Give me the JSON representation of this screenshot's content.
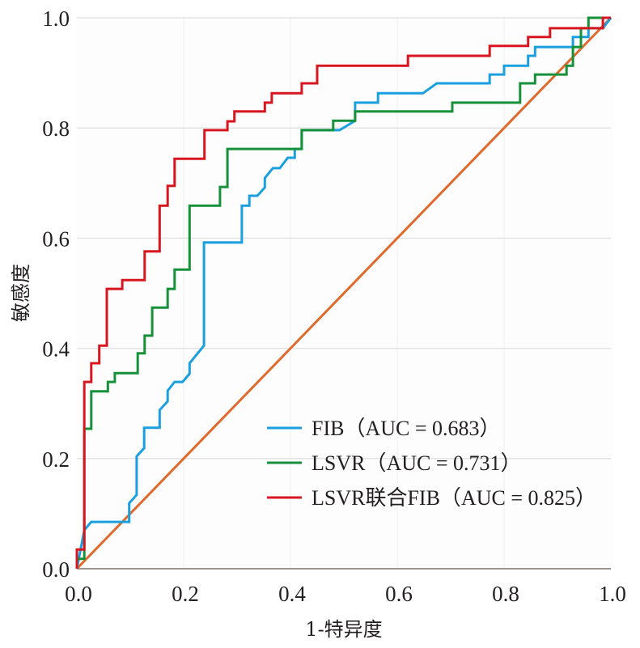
{
  "chart_data": {
    "type": "line",
    "title": "",
    "xlabel": "1-特异度",
    "ylabel": "敏感度",
    "xlim": [
      0,
      1
    ],
    "ylim": [
      0,
      1
    ],
    "x_ticks": [
      "0.0",
      "0.2",
      "0.4",
      "0.6",
      "0.8",
      "1.0"
    ],
    "y_ticks": [
      "0.0",
      "0.2",
      "0.4",
      "0.6",
      "0.8",
      "1.0"
    ],
    "x_tick_values": [
      0,
      0.2,
      0.4,
      0.6,
      0.8,
      1.0
    ],
    "y_tick_values": [
      0,
      0.2,
      0.4,
      0.6,
      0.8,
      1.0
    ],
    "grid": true,
    "legend_position": "bottom-right",
    "series": [
      {
        "name": "FIB",
        "legend_label": "FIB（AUC = 0.683）",
        "auc": 0.683,
        "color": "#1a9fe0",
        "points": [
          [
            0,
            0
          ],
          [
            0.014,
            0.07
          ],
          [
            0.027,
            0.085
          ],
          [
            0.098,
            0.085
          ],
          [
            0.098,
            0.119
          ],
          [
            0.112,
            0.134
          ],
          [
            0.112,
            0.204
          ],
          [
            0.126,
            0.219
          ],
          [
            0.126,
            0.256
          ],
          [
            0.155,
            0.256
          ],
          [
            0.155,
            0.288
          ],
          [
            0.17,
            0.304
          ],
          [
            0.17,
            0.323
          ],
          [
            0.183,
            0.339
          ],
          [
            0.198,
            0.339
          ],
          [
            0.211,
            0.354
          ],
          [
            0.211,
            0.373
          ],
          [
            0.238,
            0.405
          ],
          [
            0.238,
            0.592
          ],
          [
            0.309,
            0.592
          ],
          [
            0.309,
            0.659
          ],
          [
            0.323,
            0.659
          ],
          [
            0.323,
            0.677
          ],
          [
            0.338,
            0.677
          ],
          [
            0.352,
            0.692
          ],
          [
            0.352,
            0.709
          ],
          [
            0.367,
            0.727
          ],
          [
            0.38,
            0.727
          ],
          [
            0.395,
            0.746
          ],
          [
            0.408,
            0.746
          ],
          [
            0.408,
            0.762
          ],
          [
            0.421,
            0.762
          ],
          [
            0.421,
            0.796
          ],
          [
            0.492,
            0.796
          ],
          [
            0.521,
            0.813
          ],
          [
            0.521,
            0.846
          ],
          [
            0.564,
            0.846
          ],
          [
            0.564,
            0.863
          ],
          [
            0.648,
            0.863
          ],
          [
            0.674,
            0.881
          ],
          [
            0.773,
            0.881
          ],
          [
            0.773,
            0.897
          ],
          [
            0.8,
            0.897
          ],
          [
            0.8,
            0.913
          ],
          [
            0.845,
            0.913
          ],
          [
            0.845,
            0.931
          ],
          [
            0.858,
            0.931
          ],
          [
            0.858,
            0.947
          ],
          [
            0.929,
            0.947
          ],
          [
            0.929,
            0.965
          ],
          [
            0.958,
            0.965
          ],
          [
            0.958,
            0.981
          ],
          [
            0.985,
            0.981
          ],
          [
            1,
            1
          ]
        ]
      },
      {
        "name": "LSVR",
        "legend_label": "LSVR（AUC = 0.731）",
        "auc": 0.731,
        "color": "#16913a",
        "points": [
          [
            0,
            0
          ],
          [
            0,
            0.018
          ],
          [
            0.014,
            0.018
          ],
          [
            0.014,
            0.254
          ],
          [
            0.027,
            0.254
          ],
          [
            0.027,
            0.322
          ],
          [
            0.058,
            0.322
          ],
          [
            0.058,
            0.339
          ],
          [
            0.071,
            0.339
          ],
          [
            0.071,
            0.355
          ],
          [
            0.114,
            0.355
          ],
          [
            0.114,
            0.391
          ],
          [
            0.127,
            0.391
          ],
          [
            0.127,
            0.423
          ],
          [
            0.141,
            0.423
          ],
          [
            0.141,
            0.474
          ],
          [
            0.17,
            0.474
          ],
          [
            0.17,
            0.508
          ],
          [
            0.183,
            0.508
          ],
          [
            0.183,
            0.543
          ],
          [
            0.211,
            0.543
          ],
          [
            0.211,
            0.659
          ],
          [
            0.268,
            0.659
          ],
          [
            0.268,
            0.693
          ],
          [
            0.282,
            0.693
          ],
          [
            0.282,
            0.762
          ],
          [
            0.421,
            0.762
          ],
          [
            0.421,
            0.796
          ],
          [
            0.48,
            0.796
          ],
          [
            0.48,
            0.813
          ],
          [
            0.521,
            0.813
          ],
          [
            0.521,
            0.83
          ],
          [
            0.703,
            0.83
          ],
          [
            0.703,
            0.846
          ],
          [
            0.83,
            0.846
          ],
          [
            0.83,
            0.881
          ],
          [
            0.858,
            0.881
          ],
          [
            0.858,
            0.897
          ],
          [
            0.917,
            0.897
          ],
          [
            0.917,
            0.913
          ],
          [
            0.929,
            0.913
          ],
          [
            0.929,
            0.947
          ],
          [
            0.944,
            0.947
          ],
          [
            0.944,
            0.981
          ],
          [
            0.958,
            0.981
          ],
          [
            0.958,
            1.0
          ],
          [
            1,
            1
          ]
        ]
      },
      {
        "name": "LSVR联合FIB",
        "legend_label": "LSVR联合FIB（AUC = 0.825）",
        "auc": 0.825,
        "color": "#d7161f",
        "points": [
          [
            0,
            0
          ],
          [
            0,
            0.035
          ],
          [
            0.014,
            0.035
          ],
          [
            0.014,
            0.339
          ],
          [
            0.027,
            0.339
          ],
          [
            0.027,
            0.373
          ],
          [
            0.042,
            0.373
          ],
          [
            0.042,
            0.405
          ],
          [
            0.056,
            0.405
          ],
          [
            0.056,
            0.508
          ],
          [
            0.085,
            0.508
          ],
          [
            0.085,
            0.524
          ],
          [
            0.127,
            0.524
          ],
          [
            0.127,
            0.576
          ],
          [
            0.155,
            0.576
          ],
          [
            0.155,
            0.659
          ],
          [
            0.17,
            0.659
          ],
          [
            0.17,
            0.695
          ],
          [
            0.183,
            0.695
          ],
          [
            0.183,
            0.744
          ],
          [
            0.239,
            0.744
          ],
          [
            0.239,
            0.796
          ],
          [
            0.282,
            0.796
          ],
          [
            0.282,
            0.812
          ],
          [
            0.295,
            0.812
          ],
          [
            0.295,
            0.83
          ],
          [
            0.352,
            0.83
          ],
          [
            0.352,
            0.846
          ],
          [
            0.365,
            0.846
          ],
          [
            0.365,
            0.863
          ],
          [
            0.421,
            0.863
          ],
          [
            0.421,
            0.881
          ],
          [
            0.45,
            0.881
          ],
          [
            0.45,
            0.913
          ],
          [
            0.62,
            0.913
          ],
          [
            0.62,
            0.931
          ],
          [
            0.773,
            0.931
          ],
          [
            0.773,
            0.949
          ],
          [
            0.845,
            0.949
          ],
          [
            0.845,
            0.965
          ],
          [
            0.886,
            0.965
          ],
          [
            0.886,
            0.981
          ],
          [
            0.985,
            0.981
          ],
          [
            0.985,
            1.0
          ],
          [
            1,
            1
          ]
        ]
      },
      {
        "name": "reference",
        "legend_label": "",
        "color": "#e06a2c",
        "points": [
          [
            0,
            0
          ],
          [
            1,
            1
          ]
        ]
      }
    ]
  }
}
